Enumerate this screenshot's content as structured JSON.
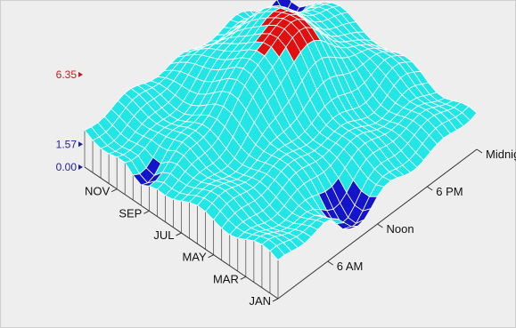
{
  "chart_data": {
    "type": "surface",
    "title": "",
    "x_axis": {
      "label": "",
      "ticks": [
        "JAN",
        "MAR",
        "MAY",
        "JUL",
        "SEP",
        "NOV"
      ]
    },
    "y_axis": {
      "label": "",
      "ticks": [
        "6 AM",
        "Noon",
        "6 PM",
        "Midnight"
      ],
      "range_hours": [
        0,
        24
      ]
    },
    "z_axis": {
      "label": "",
      "ticks": [
        "0.00",
        "1.57",
        "6.35"
      ],
      "values": [
        0.0,
        1.57,
        6.35
      ],
      "tick_colors": [
        "#1f1f99",
        "#1f1f99",
        "#c02020"
      ]
    },
    "colors": {
      "low": "#1414c8",
      "mid": "#22e6e6",
      "high": "#e01010",
      "mesh": "#ffffff",
      "background": "#eeeeee"
    },
    "levels": {
      "low_below": 1.57,
      "high_above": 6.35
    },
    "grid": false,
    "legend": "none"
  }
}
